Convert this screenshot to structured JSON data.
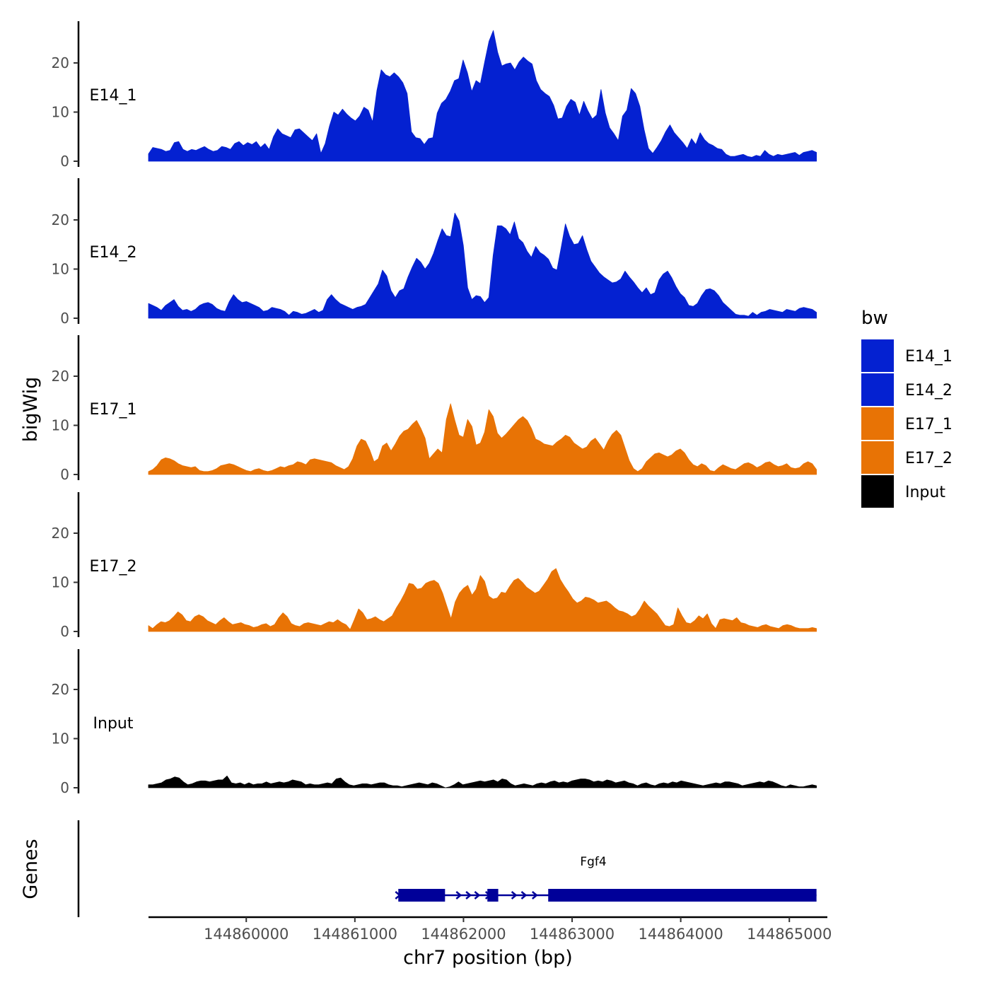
{
  "chart_data": {
    "type": "area",
    "ylabel": "bigWig",
    "xlabel": "chr7 position (bp)",
    "ylim": [
      0,
      28
    ],
    "xlim": [
      144859100,
      144865350
    ],
    "data_xrange": [
      144859100,
      144865250
    ],
    "y_ticks": [
      0,
      10,
      20
    ],
    "y_tick_labels": [
      "0",
      "10",
      "20"
    ],
    "x_ticks": [
      144860000,
      144861000,
      144862000,
      144863000,
      144864000,
      144865000
    ],
    "x_tick_labels": [
      "144860000",
      "144861000",
      "144862000",
      "144863000",
      "144864000",
      "144865000"
    ],
    "legend": {
      "title": "bw",
      "position": "right",
      "entries": [
        {
          "label": "E14_1",
          "color": "#0421D1"
        },
        {
          "label": "E14_2",
          "color": "#0421D1"
        },
        {
          "label": "E17_1",
          "color": "#E87305"
        },
        {
          "label": "E17_2",
          "color": "#E87305"
        },
        {
          "label": "Input",
          "color": "#000000"
        }
      ]
    },
    "series": [
      {
        "name": "E14_1",
        "color": "#0421D1",
        "values": [
          1.5,
          2.8,
          2.6,
          2.4,
          2.0,
          2.2,
          3.8,
          4.0,
          2.4,
          2.0,
          2.4,
          2.2,
          2.6,
          3.0,
          2.4,
          2.0,
          2.2,
          3.0,
          2.8,
          2.4,
          3.6,
          4.0,
          3.2,
          3.8,
          3.4,
          4.0,
          2.8,
          3.6,
          2.4,
          5.0,
          6.6,
          5.6,
          5.2,
          4.8,
          6.4,
          6.6,
          5.8,
          5.0,
          4.2,
          5.6,
          1.6,
          3.6,
          7.2,
          10.0,
          9.4,
          10.6,
          9.6,
          8.8,
          8.2,
          9.2,
          11.0,
          10.4,
          8.0,
          14.4,
          18.6,
          17.6,
          17.2,
          18.0,
          17.2,
          16.0,
          13.8,
          6.0,
          4.8,
          4.6,
          3.4,
          4.6,
          4.8,
          9.8,
          11.8,
          12.6,
          14.2,
          16.4,
          16.8,
          20.6,
          18.0,
          14.2,
          16.4,
          15.8,
          20.2,
          24.4,
          26.6,
          22.2,
          19.4,
          19.8,
          20.0,
          18.6,
          20.2,
          21.2,
          20.4,
          19.8,
          16.4,
          14.6,
          13.8,
          13.2,
          11.4,
          8.6,
          8.8,
          11.2,
          12.6,
          12.0,
          9.4,
          12.2,
          10.2,
          8.6,
          9.4,
          14.6,
          9.8,
          6.8,
          5.6,
          4.2,
          9.2,
          10.4,
          14.8,
          13.8,
          11.2,
          6.4,
          2.6,
          1.6,
          2.8,
          4.2,
          6.0,
          7.4,
          5.8,
          4.8,
          3.8,
          2.6,
          4.6,
          3.4,
          5.8,
          4.4,
          3.6,
          3.2,
          2.6,
          2.4,
          1.4,
          1.0,
          1.0,
          1.2,
          1.4,
          1.0,
          0.8,
          1.2,
          1.0,
          2.2,
          1.4,
          1.0,
          1.4,
          1.2,
          1.4,
          1.6,
          1.8,
          1.2,
          1.8,
          2.0,
          2.2,
          1.8
        ]
      },
      {
        "name": "E14_2",
        "color": "#0421D1",
        "values": [
          3.0,
          2.6,
          2.2,
          1.6,
          2.6,
          3.2,
          3.8,
          2.4,
          1.6,
          1.8,
          1.4,
          1.8,
          2.6,
          3.0,
          3.2,
          2.8,
          2.0,
          1.6,
          1.4,
          3.4,
          4.8,
          3.8,
          3.2,
          3.4,
          3.0,
          2.6,
          2.2,
          1.4,
          1.6,
          2.2,
          2.0,
          1.8,
          1.4,
          0.6,
          1.4,
          1.2,
          0.8,
          1.0,
          1.4,
          1.8,
          1.2,
          1.6,
          3.8,
          4.8,
          3.8,
          3.0,
          2.6,
          2.2,
          1.8,
          2.2,
          2.4,
          2.8,
          4.2,
          5.6,
          7.0,
          9.8,
          8.6,
          5.6,
          4.2,
          5.6,
          6.0,
          8.4,
          10.4,
          12.2,
          11.4,
          10.0,
          11.2,
          13.2,
          15.8,
          18.2,
          16.8,
          16.6,
          21.4,
          19.8,
          14.8,
          6.2,
          3.8,
          4.6,
          4.4,
          3.2,
          4.2,
          12.8,
          18.8,
          18.8,
          18.2,
          17.0,
          19.6,
          16.2,
          15.4,
          13.6,
          12.4,
          14.6,
          13.4,
          12.8,
          12.0,
          10.2,
          9.8,
          14.4,
          19.2,
          16.6,
          15.0,
          15.2,
          16.8,
          14.0,
          11.6,
          10.4,
          9.2,
          8.4,
          7.8,
          7.2,
          7.4,
          8.0,
          9.6,
          8.4,
          7.4,
          6.2,
          5.2,
          6.2,
          4.8,
          5.2,
          7.8,
          9.0,
          9.6,
          8.2,
          6.4,
          5.0,
          4.2,
          2.6,
          2.4,
          3.0,
          4.6,
          5.8,
          6.0,
          5.6,
          4.6,
          3.2,
          2.4,
          1.6,
          0.8,
          0.6,
          0.6,
          0.4,
          1.2,
          0.6,
          1.2,
          1.4,
          1.8,
          1.6,
          1.4,
          1.2,
          1.8,
          1.6,
          1.4,
          2.0,
          2.2,
          2.0,
          1.8,
          1.2
        ]
      },
      {
        "name": "E17_1",
        "color": "#E87305",
        "values": [
          0.6,
          1.0,
          1.8,
          3.0,
          3.4,
          3.2,
          2.8,
          2.2,
          1.8,
          1.6,
          1.4,
          1.6,
          0.8,
          0.6,
          0.6,
          0.8,
          1.2,
          1.8,
          2.0,
          2.2,
          2.0,
          1.6,
          1.2,
          0.8,
          0.6,
          1.0,
          1.2,
          0.8,
          0.6,
          0.8,
          1.2,
          1.6,
          1.4,
          1.8,
          2.0,
          2.6,
          2.4,
          2.0,
          3.0,
          3.2,
          3.0,
          2.8,
          2.6,
          2.4,
          1.8,
          1.4,
          1.0,
          1.6,
          3.2,
          5.8,
          7.2,
          6.8,
          5.0,
          2.6,
          3.2,
          5.8,
          6.4,
          4.8,
          6.2,
          7.8,
          8.8,
          9.2,
          10.2,
          11.0,
          9.4,
          7.4,
          3.2,
          4.2,
          5.2,
          4.4,
          11.2,
          14.4,
          11.0,
          8.0,
          7.6,
          11.2,
          9.8,
          6.0,
          6.4,
          8.6,
          13.2,
          11.8,
          8.4,
          7.4,
          8.2,
          9.2,
          10.2,
          11.2,
          11.8,
          11.0,
          9.4,
          7.2,
          6.8,
          6.2,
          6.0,
          5.8,
          6.6,
          7.2,
          8.0,
          7.6,
          6.4,
          5.8,
          5.2,
          5.6,
          6.8,
          7.4,
          6.2,
          5.0,
          6.8,
          8.2,
          9.0,
          8.0,
          5.4,
          2.8,
          1.2,
          0.6,
          1.2,
          2.6,
          3.4,
          4.2,
          4.4,
          4.0,
          3.6,
          4.0,
          4.8,
          5.2,
          4.4,
          3.0,
          2.0,
          1.6,
          2.2,
          1.8,
          0.8,
          0.6,
          1.4,
          2.0,
          1.6,
          1.2,
          1.0,
          1.6,
          2.2,
          2.4,
          2.0,
          1.4,
          1.8,
          2.4,
          2.6,
          2.0,
          1.6,
          1.8,
          2.2,
          1.4,
          1.2,
          1.4,
          2.2,
          2.6,
          2.2,
          1.0
        ]
      },
      {
        "name": "E17_2",
        "color": "#E87305",
        "values": [
          1.2,
          0.6,
          1.4,
          2.0,
          1.8,
          2.2,
          3.0,
          4.0,
          3.4,
          2.2,
          2.0,
          3.0,
          3.4,
          3.0,
          2.2,
          1.8,
          1.4,
          2.2,
          2.8,
          2.0,
          1.4,
          1.6,
          1.8,
          1.4,
          1.2,
          0.8,
          1.0,
          1.4,
          1.6,
          1.0,
          1.4,
          2.8,
          3.8,
          3.0,
          1.6,
          1.2,
          1.0,
          1.6,
          1.8,
          1.6,
          1.4,
          1.2,
          1.6,
          2.0,
          1.8,
          2.4,
          1.8,
          1.4,
          0.4,
          2.4,
          4.6,
          3.8,
          2.4,
          2.6,
          3.0,
          2.4,
          2.0,
          2.6,
          3.2,
          4.8,
          6.2,
          7.8,
          9.8,
          9.6,
          8.6,
          8.8,
          9.8,
          10.2,
          10.4,
          9.8,
          7.8,
          5.2,
          2.6,
          6.0,
          7.8,
          8.8,
          9.4,
          7.4,
          8.6,
          11.4,
          10.2,
          7.2,
          6.6,
          6.8,
          8.0,
          7.8,
          9.2,
          10.4,
          10.8,
          10.0,
          9.0,
          8.4,
          7.8,
          8.2,
          9.4,
          10.6,
          12.2,
          12.8,
          10.6,
          9.2,
          8.0,
          6.6,
          5.8,
          6.2,
          7.0,
          6.8,
          6.4,
          5.8,
          6.0,
          6.2,
          5.6,
          4.8,
          4.2,
          4.0,
          3.6,
          3.0,
          3.4,
          4.6,
          6.2,
          5.2,
          4.4,
          3.6,
          2.4,
          1.2,
          1.0,
          1.4,
          4.8,
          3.2,
          1.8,
          1.6,
          2.2,
          3.2,
          2.6,
          3.6,
          1.6,
          0.6,
          2.4,
          2.6,
          2.4,
          2.2,
          2.8,
          1.8,
          1.6,
          1.2,
          1.0,
          0.8,
          1.2,
          1.4,
          1.0,
          0.8,
          0.6,
          1.2,
          1.4,
          1.2,
          0.8,
          0.6,
          0.6,
          0.6,
          0.8,
          0.6
        ]
      },
      {
        "name": "Input",
        "color": "#000000",
        "values": [
          0.6,
          0.6,
          0.8,
          1.0,
          1.6,
          1.8,
          2.2,
          2.0,
          1.2,
          0.6,
          0.8,
          1.2,
          1.4,
          1.4,
          1.2,
          1.4,
          1.6,
          1.6,
          2.4,
          1.0,
          0.8,
          1.0,
          0.6,
          1.0,
          0.6,
          0.8,
          0.8,
          1.2,
          0.8,
          1.0,
          1.2,
          1.0,
          1.2,
          1.6,
          1.4,
          1.2,
          0.6,
          0.8,
          0.6,
          0.6,
          0.8,
          1.0,
          0.8,
          1.8,
          2.0,
          1.2,
          0.6,
          0.4,
          0.6,
          0.8,
          0.8,
          0.6,
          0.8,
          1.0,
          1.0,
          0.6,
          0.4,
          0.4,
          0.2,
          0.4,
          0.6,
          0.8,
          1.0,
          0.8,
          0.6,
          1.0,
          0.8,
          0.4,
          0.0,
          0.2,
          0.6,
          1.2,
          0.6,
          0.8,
          1.0,
          1.2,
          1.4,
          1.2,
          1.4,
          1.6,
          1.2,
          1.8,
          1.6,
          0.8,
          0.4,
          0.6,
          0.8,
          0.6,
          0.4,
          0.8,
          1.0,
          0.8,
          1.2,
          1.4,
          1.0,
          1.2,
          1.0,
          1.4,
          1.6,
          1.8,
          1.8,
          1.6,
          1.2,
          1.4,
          1.2,
          1.6,
          1.4,
          1.0,
          1.2,
          1.4,
          1.0,
          0.8,
          0.4,
          0.8,
          1.0,
          0.6,
          0.4,
          0.8,
          1.0,
          0.8,
          1.2,
          1.0,
          1.4,
          1.2,
          1.0,
          0.8,
          0.6,
          0.4,
          0.6,
          0.8,
          1.0,
          0.8,
          1.2,
          1.2,
          1.0,
          0.8,
          0.4,
          0.6,
          0.8,
          1.0,
          1.2,
          1.0,
          1.4,
          1.2,
          0.8,
          0.4,
          0.2,
          0.6,
          0.4,
          0.2,
          0.2,
          0.4,
          0.6,
          0.4
        ]
      }
    ],
    "genes": {
      "track_label": "Genes",
      "gene_name": "Fgf4",
      "color": "#000099",
      "start": 144861400,
      "end": 144865250,
      "exons": [
        [
          144861400,
          144861830
        ],
        [
          144862220,
          144862320
        ],
        [
          144862780,
          144865250
        ]
      ],
      "intron_arrows": [
        144861960,
        144862050,
        144862130,
        144862230,
        144862470,
        144862560,
        144862660
      ]
    }
  }
}
